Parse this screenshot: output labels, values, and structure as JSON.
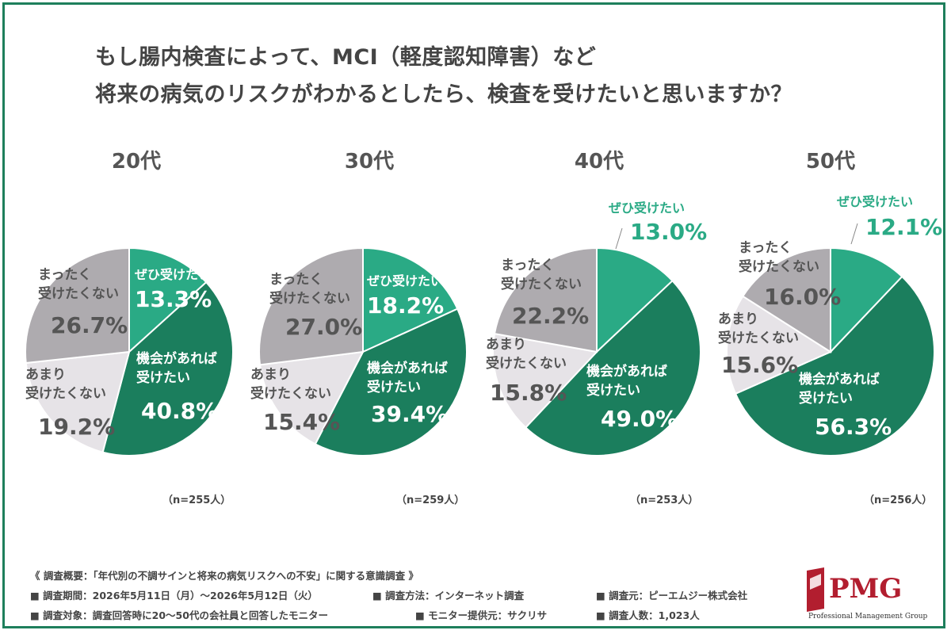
{
  "title": {
    "line1": "もし腸内検査によって、MCI（軽度認知障害）など",
    "line2": "将来の病気のリスクがわかるとしたら、検査を受けたいと思いますか？"
  },
  "colors": {
    "frame": "#1e7f5c",
    "zehi": "#2aaa85",
    "kikai": "#1b7e5d",
    "amari": "#e6e3e7",
    "mattaku": "#aeabaf",
    "label_dark": "#555555",
    "label_light": "#ffffff",
    "zehi_outside_label": "#2aaa85"
  },
  "chart_data": [
    {
      "type": "pie",
      "title": "20代",
      "n": "（n=255人）",
      "slices": [
        {
          "label": "ぜひ受けたい",
          "value": 13.3,
          "value_label": "13.3%"
        },
        {
          "label": "機会があれば受けたい",
          "value": 40.8,
          "value_label": "40.8%"
        },
        {
          "label": "あまり受けたくない",
          "value": 19.2,
          "value_label": "19.2%"
        },
        {
          "label": "まったく受けたくない",
          "value": 26.7,
          "value_label": "26.7%"
        }
      ]
    },
    {
      "type": "pie",
      "title": "30代",
      "n": "（n=259人）",
      "slices": [
        {
          "label": "ぜひ受けたい",
          "value": 18.2,
          "value_label": "18.2%"
        },
        {
          "label": "機会があれば受けたい",
          "value": 39.4,
          "value_label": "39.4%"
        },
        {
          "label": "あまり受けたくない",
          "value": 15.4,
          "value_label": "15.4%"
        },
        {
          "label": "まったく受けたくない",
          "value": 27.0,
          "value_label": "27.0%"
        }
      ]
    },
    {
      "type": "pie",
      "title": "40代",
      "n": "（n=253人）",
      "slices": [
        {
          "label": "ぜひ受けたい",
          "value": 13.0,
          "value_label": "13.0%"
        },
        {
          "label": "機会があれば受けたい",
          "value": 49.0,
          "value_label": "49.0%"
        },
        {
          "label": "あまり受けたくない",
          "value": 15.8,
          "value_label": "15.8%"
        },
        {
          "label": "まったく受けたくない",
          "value": 22.2,
          "value_label": "22.2%"
        }
      ]
    },
    {
      "type": "pie",
      "title": "50代",
      "n": "（n=256人）",
      "slices": [
        {
          "label": "ぜひ受けたい",
          "value": 12.1,
          "value_label": "12.1%"
        },
        {
          "label": "機会があれば受けたい",
          "value": 56.3,
          "value_label": "56.3%"
        },
        {
          "label": "あまり受けたくない",
          "value": 15.6,
          "value_label": "15.6%"
        },
        {
          "label": "まったく受けたくない",
          "value": 16.0,
          "value_label": "16.0%"
        }
      ]
    }
  ],
  "footer": {
    "summary": "《 調査概要：「年代別の不調サインと将来の病気リスクへの不安」に関する意識調査 》",
    "period": "■ 調査期間：2026年5月11日（月）～2026年5月12日（火）",
    "method": "■ 調査方法：インターネット調査",
    "source": "■ 調査元：ピーエムジー株式会社",
    "target": "■ 調査対象：調査回答時に20～50代の会社員と回答したモニター",
    "provider": "■ モニター提供元：サクリサ",
    "count": "■ 調査人数：1,023人"
  },
  "logo": {
    "text": "PMG",
    "subtitle": "Professional Management Group"
  }
}
